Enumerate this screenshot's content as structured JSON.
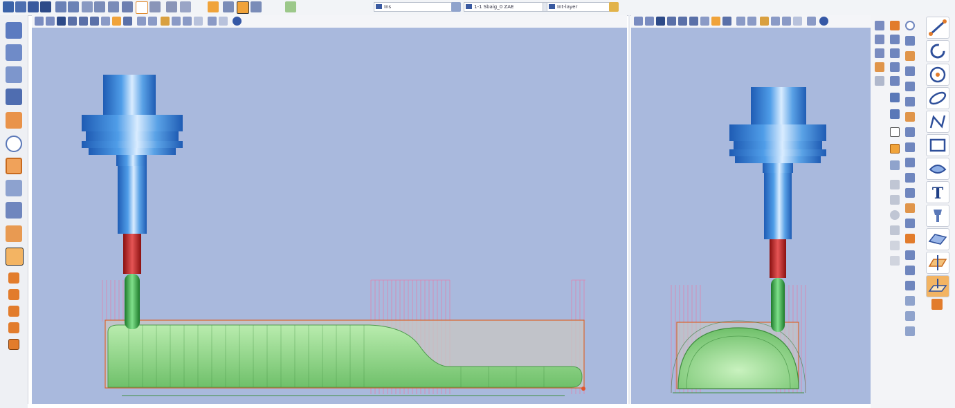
{
  "toolbar": {
    "combo_layer": "Ins",
    "combo_work": "1-1 Sbaig_0 ZAE",
    "combo_material": "Int-layer"
  },
  "views": {
    "left": {
      "name": "front-view"
    },
    "right": {
      "name": "side-view"
    }
  },
  "colors": {
    "viewport_bg": "#a9b9dd",
    "holder": "#3c7fd4",
    "tool_red": "#cc2a2a",
    "tool_green": "#2faa3c",
    "part_green": "#8fd27e",
    "stock_outline": "#d9652e",
    "toolpath_pink": "#e36b9c"
  },
  "icons": {
    "left_toolbar": [
      "rotate-icon",
      "loop-icon",
      "chain-icon",
      "tee-icon",
      "cut-icon",
      "circle-icon",
      "frame-icon",
      "document-icon",
      "drill-icon",
      "mill-icon",
      "probe-icon",
      "tool-a-icon",
      "tool-b-icon",
      "tool-c-icon",
      "tool-d-icon",
      "stop-icon"
    ],
    "right_big": [
      "line-icon",
      "arc-icon",
      "circle-icon",
      "ellipse-icon",
      "spline-icon",
      "rectangle-icon",
      "pocket-icon",
      "text-icon",
      "drill-tool-icon",
      "surface-icon",
      "plane-icon",
      "plane-offset-icon",
      "tool-icon"
    ]
  }
}
